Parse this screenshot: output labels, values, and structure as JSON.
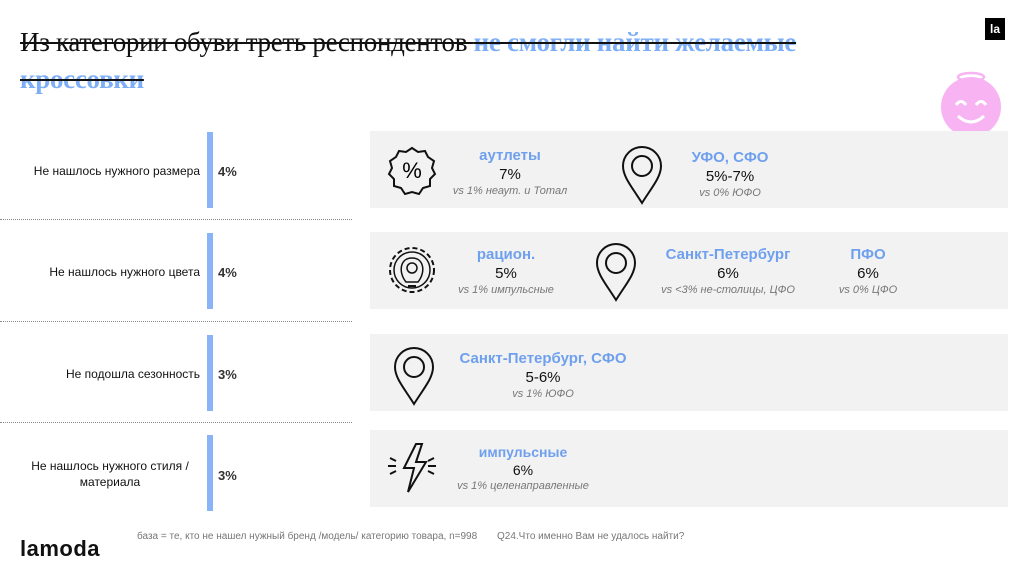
{
  "title": {
    "part1": "Из категории обуви треть респондентов ",
    "part2": "не смогли найти желаемые кроссовки"
  },
  "badge": "la",
  "rows": [
    {
      "label": "Не нашлось нужного размера",
      "pct": "4%"
    },
    {
      "label": "Не нашлось нужного цвета",
      "pct": "4%"
    },
    {
      "label": "Не подошла сезонность",
      "pct": "3%"
    },
    {
      "label": "Не нашлось нужного стиля / материала",
      "pct": "3%"
    }
  ],
  "panels": [
    {
      "items": [
        {
          "h": "аутлеты",
          "v": "7%",
          "s": "vs 1% неаут. и Тотал"
        },
        {
          "h": "УФО, СФО",
          "v": "5%-7%",
          "s": "vs 0% ЮФО"
        }
      ]
    },
    {
      "items": [
        {
          "h": "рацион.",
          "v": "5%",
          "s": "vs 1% импульсные"
        },
        {
          "h": "Санкт-Петербург",
          "v": "6%",
          "s": "vs <3% не-столицы, ЦФО"
        },
        {
          "h": "ПФО",
          "v": "6%",
          "s": "vs 0% ЦФО"
        }
      ]
    },
    {
      "items": [
        {
          "h": "Санкт-Петербург, СФО",
          "v": "5-6%",
          "s": "vs 1% ЮФО"
        }
      ]
    },
    {
      "items": [
        {
          "h": "импульсные",
          "v": "6%",
          "s": "vs 1% целенаправленные"
        }
      ]
    }
  ],
  "footer": {
    "base": "база = те, кто не нашел нужный бренд /модель/ категорию товара, n=998",
    "question": "Q24.Что именно Вам не удалось найти?",
    "logo": "lamoda"
  },
  "colors": {
    "accent": "#7eaef5",
    "bar": "#8ab4f8",
    "panel": "#f2f2f2",
    "smiley": "#f7b3f2"
  }
}
